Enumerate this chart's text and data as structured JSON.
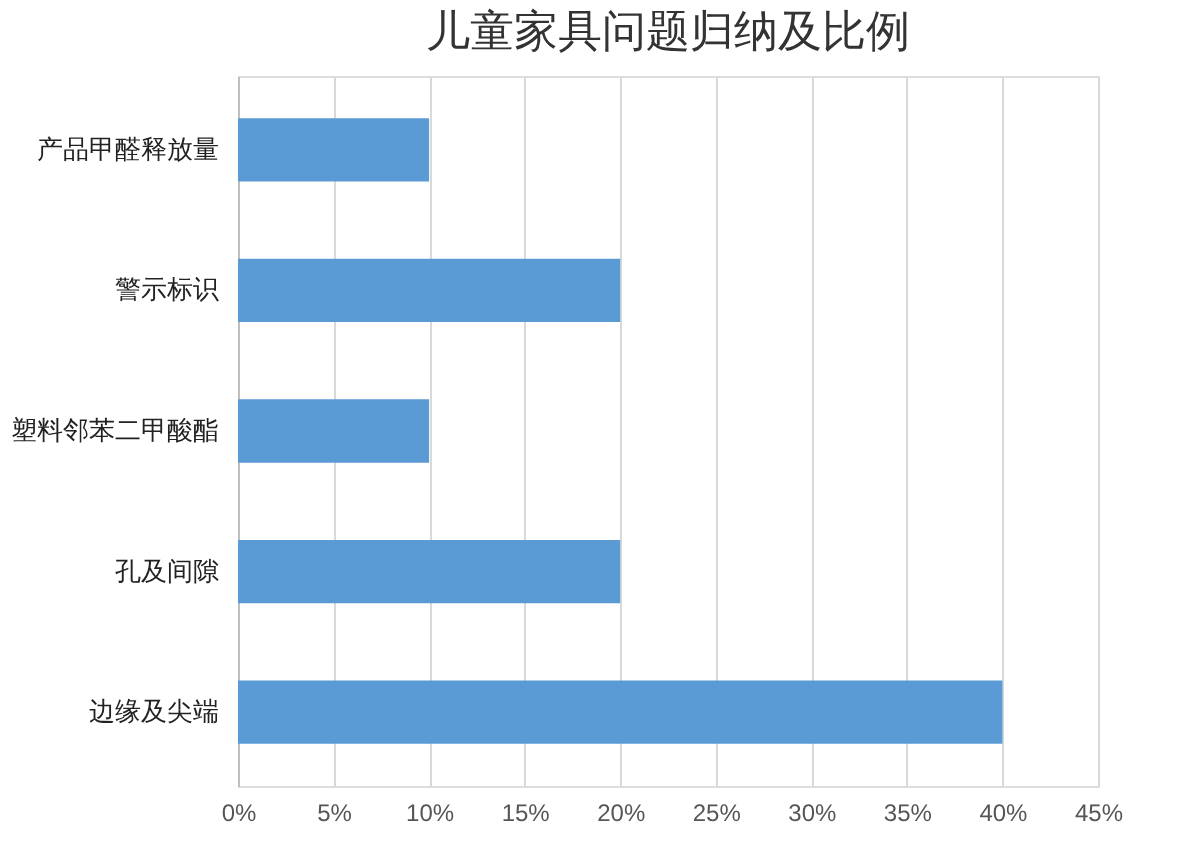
{
  "chart_data": {
    "type": "bar",
    "title": "儿童家具问题归纳及比例",
    "orientation": "horizontal",
    "categories": [
      "产品甲醛释放量",
      "警示标识",
      "塑料邻苯二甲酸酯",
      "孔及间隙",
      "边缘及尖端"
    ],
    "values": [
      10,
      20,
      10,
      20,
      40
    ],
    "color": "#5b9bd5",
    "xlim": [
      0,
      45
    ],
    "xticks": [
      {
        "value": 0,
        "label": "0%"
      },
      {
        "value": 5,
        "label": "5%"
      },
      {
        "value": 10,
        "label": "10%"
      },
      {
        "value": 15,
        "label": "15%"
      },
      {
        "value": 20,
        "label": "20%"
      },
      {
        "value": 25,
        "label": "25%"
      },
      {
        "value": 30,
        "label": "30%"
      },
      {
        "value": 35,
        "label": "35%"
      },
      {
        "value": 40,
        "label": "40%"
      },
      {
        "value": 45,
        "label": "45%"
      }
    ],
    "grid": "x"
  }
}
